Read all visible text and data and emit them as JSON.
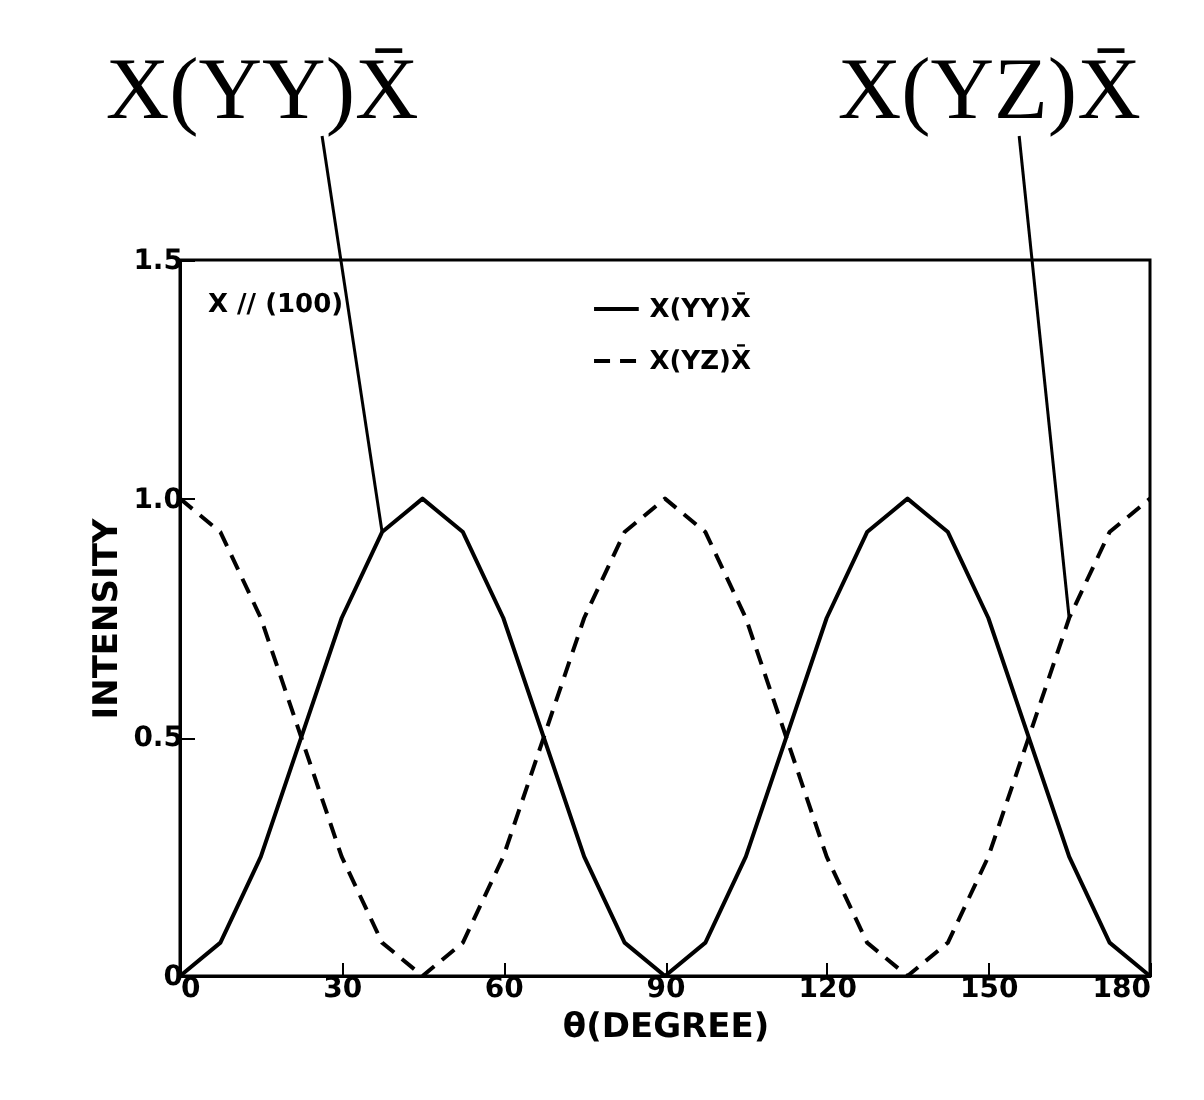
{
  "chart_data": {
    "type": "line",
    "xlabel": "θ(DEGREE)",
    "ylabel": "INTENSITY",
    "x": [
      0,
      7.5,
      15,
      22.5,
      30,
      37.5,
      45,
      52.5,
      60,
      67.5,
      75,
      82.5,
      90,
      97.5,
      105,
      112.5,
      120,
      127.5,
      135,
      142.5,
      150,
      157.5,
      165,
      172.5,
      180
    ],
    "series": [
      {
        "name": "X(YY)X̄",
        "color": "#000000",
        "line_style": "solid",
        "values": [
          0,
          0.07,
          0.25,
          0.5,
          0.75,
          0.93,
          1,
          0.93,
          0.75,
          0.5,
          0.25,
          0.07,
          0,
          0.07,
          0.25,
          0.5,
          0.75,
          0.93,
          1,
          0.93,
          0.75,
          0.5,
          0.25,
          0.07,
          0
        ]
      },
      {
        "name": "X(YZ)X̄",
        "color": "#000000",
        "line_style": "dashed",
        "values": [
          1,
          0.93,
          0.75,
          0.5,
          0.25,
          0.07,
          0,
          0.07,
          0.25,
          0.5,
          0.75,
          0.93,
          1,
          0.93,
          0.75,
          0.5,
          0.25,
          0.07,
          0,
          0.07,
          0.25,
          0.5,
          0.75,
          0.93,
          1
        ]
      }
    ],
    "xlim": [
      0,
      180
    ],
    "xticks": [
      0,
      30,
      60,
      90,
      120,
      150,
      180
    ],
    "ylim": [
      0,
      1.5
    ],
    "yticks": [
      0,
      0.5,
      {
        "value": 1,
        "label": "1.0"
      },
      1.5
    ],
    "grid": false,
    "legend": "top",
    "annotations": [
      "X // (100)",
      {
        "text": "X(YY)X̄",
        "x": 37.5,
        "y": 0.93
      },
      {
        "text": "X(YZ)X̄",
        "x": 165,
        "y": 0.75
      }
    ]
  }
}
